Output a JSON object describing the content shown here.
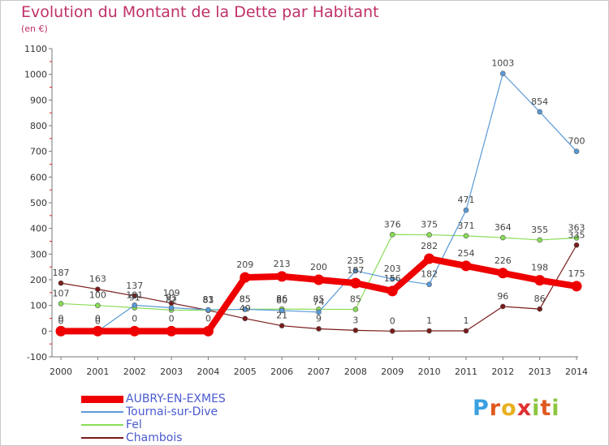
{
  "chart_data": {
    "type": "line",
    "title": "Evolution du Montant de la Dette par Habitant",
    "subtitle": "(en €)",
    "x": [
      "2000",
      "2001",
      "2002",
      "2003",
      "2004",
      "2005",
      "2006",
      "2007",
      "2008",
      "2009",
      "2010",
      "2011",
      "2012",
      "2013",
      "2014"
    ],
    "ylim": [
      -100,
      1100
    ],
    "yticks": [
      -100,
      0,
      100,
      200,
      300,
      400,
      500,
      600,
      700,
      800,
      900,
      1000,
      1100
    ],
    "grid": false,
    "legend_position": "bottom-left",
    "series": [
      {
        "name": "AUBRY-EN-EXMES",
        "color": "#ee0000",
        "values": [
          0,
          0,
          0,
          0,
          0,
          209,
          213,
          200,
          187,
          156,
          282,
          254,
          226,
          198,
          175
        ]
      },
      {
        "name": "Tournai-sur-Dive",
        "color": "#5a9ad8",
        "values": [
          0,
          0,
          101,
          91,
          83,
          85,
          80,
          74,
          235,
          203,
          182,
          471,
          1003,
          854,
          700
        ]
      },
      {
        "name": "Fel",
        "color": "#88dd55",
        "values": [
          107,
          100,
          91,
          82,
          81,
          85,
          86,
          85,
          85,
          376,
          375,
          371,
          364,
          355,
          363
        ]
      },
      {
        "name": "Chambois",
        "color": "#7a1a1a",
        "values": [
          187,
          163,
          137,
          109,
          81,
          49,
          21,
          9,
          3,
          0,
          1,
          1,
          96,
          86,
          335
        ]
      }
    ]
  },
  "logo": {
    "letters": [
      "P",
      "r",
      "o",
      "x",
      "i",
      "t",
      "i"
    ],
    "colors": [
      "#3aa0e0",
      "#e05a20",
      "#e8b020",
      "#e03030",
      "#8cc63f",
      "#e05a20",
      "#8cc63f"
    ]
  }
}
